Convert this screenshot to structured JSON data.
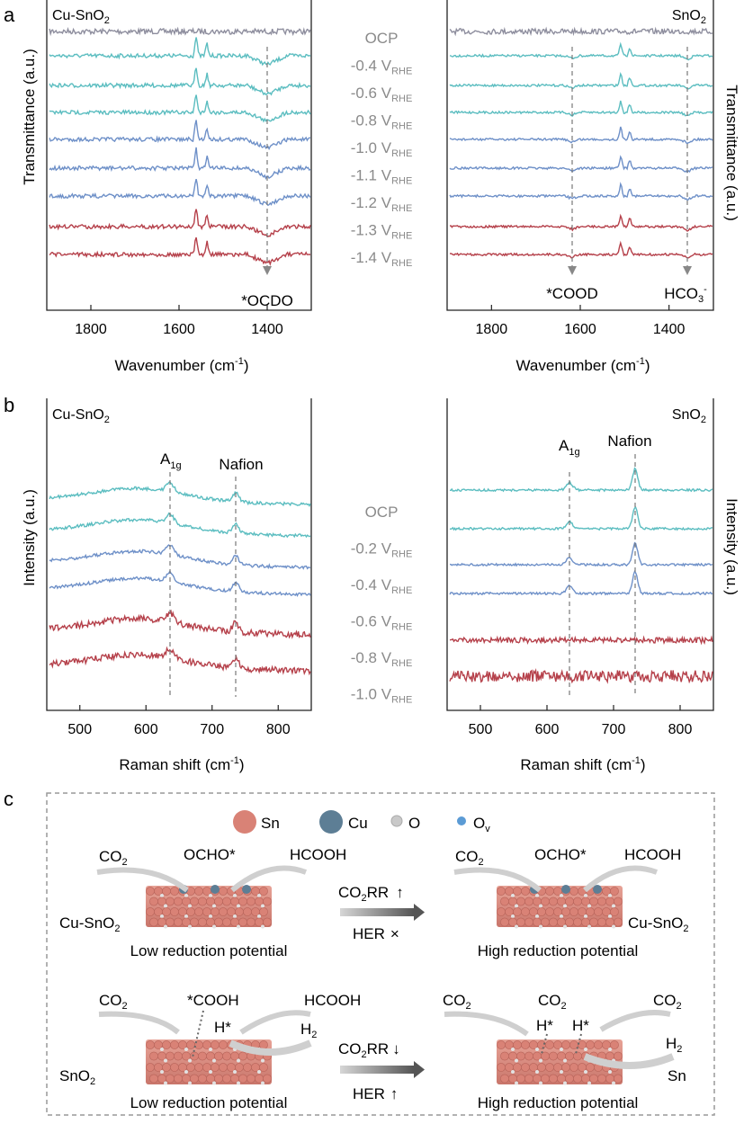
{
  "panel_labels": {
    "a": "a",
    "b": "b",
    "c": "c"
  },
  "chart_data": [
    {
      "type": "line",
      "panel": "a-left",
      "sample": "Cu-SnO",
      "sample_sub": "2",
      "xlabel": "Wavenumber (cm",
      "xlabel_sup": "-1",
      "xlabel_end": ")",
      "ylabel": "Transmittance (a.u.)",
      "xlim": [
        1900,
        1300
      ],
      "xticks": [
        "1800",
        "1600",
        "1400"
      ],
      "xtick_values": [
        1800,
        1600,
        1400
      ],
      "series": [
        {
          "name": "OCP",
          "color": "#8e8e9e"
        },
        {
          "name": "-0.4 V_RHE",
          "color": "#5bbdc0"
        },
        {
          "name": "-0.6 V_RHE",
          "color": "#5bbdc0"
        },
        {
          "name": "-0.8 V_RHE",
          "color": "#5bbdc0"
        },
        {
          "name": "-1.0 V_RHE",
          "color": "#6e90c8"
        },
        {
          "name": "-1.1 V_RHE",
          "color": "#6e90c8"
        },
        {
          "name": "-1.2 V_RHE",
          "color": "#6e90c8"
        },
        {
          "name": "-1.3 V_RHE",
          "color": "#b5404a"
        },
        {
          "name": "-1.4 V_RHE",
          "color": "#b5404a"
        }
      ],
      "annotations": [
        {
          "label": "*OCDO",
          "x": 1400
        }
      ]
    },
    {
      "type": "line",
      "panel": "a-right",
      "sample": "SnO",
      "sample_sub": "2",
      "xlabel": "Wavenumber (cm",
      "xlabel_sup": "-1",
      "xlabel_end": ")",
      "ylabel": "Transmittance (a.u.)",
      "xlim": [
        1900,
        1300
      ],
      "xticks": [
        "1800",
        "1600",
        "1400"
      ],
      "xtick_values": [
        1800,
        1600,
        1400
      ],
      "annotations": [
        {
          "label": "*COOD",
          "x": 1625
        },
        {
          "label": "HCO",
          "sub": "3",
          "sup": "-",
          "x": 1360
        }
      ]
    },
    {
      "type": "line",
      "panel": "b-left",
      "sample": "Cu-SnO",
      "sample_sub": "2",
      "xlabel": "Raman shift (cm",
      "xlabel_sup": "-1",
      "xlabel_end": ")",
      "ylabel": "Intensity (a.u.)",
      "xlim": [
        450,
        850
      ],
      "xticks": [
        "500",
        "600",
        "700",
        "800"
      ],
      "xtick_values": [
        500,
        600,
        700,
        800
      ],
      "series": [
        {
          "name": "OCP",
          "color": "#5bbdc0"
        },
        {
          "name": "-0.2 V_RHE",
          "color": "#5bbdc0"
        },
        {
          "name": "-0.4 V_RHE",
          "color": "#6e90c8"
        },
        {
          "name": "-0.6 V_RHE",
          "color": "#6e90c8"
        },
        {
          "name": "-0.8 V_RHE",
          "color": "#b5404a"
        },
        {
          "name": "-1.0 V_RHE",
          "color": "#b5404a"
        }
      ],
      "annotations": [
        {
          "label": "A",
          "sub": "1g",
          "x": 632
        },
        {
          "label": "Nafion",
          "x": 730
        }
      ]
    },
    {
      "type": "line",
      "panel": "b-right",
      "sample": "SnO",
      "sample_sub": "2",
      "xlabel": "Raman shift (cm",
      "xlabel_sup": "-1",
      "xlabel_end": ")",
      "ylabel": "Intensity (a.u.)",
      "xlim": [
        450,
        850
      ],
      "xticks": [
        "500",
        "600",
        "700",
        "800"
      ],
      "xtick_values": [
        500,
        600,
        700,
        800
      ],
      "annotations": [
        {
          "label": "A",
          "sub": "1g",
          "x": 632
        },
        {
          "label": "Nafion",
          "x": 730
        }
      ]
    }
  ],
  "ir_potentials": [
    {
      "main": "OCP",
      "sub": ""
    },
    {
      "main": "-0.4 V",
      "sub": "RHE"
    },
    {
      "main": "-0.6 V",
      "sub": "RHE"
    },
    {
      "main": "-0.8 V",
      "sub": "RHE"
    },
    {
      "main": "-1.0 V",
      "sub": "RHE"
    },
    {
      "main": "-1.1 V",
      "sub": "RHE"
    },
    {
      "main": "-1.2 V",
      "sub": "RHE"
    },
    {
      "main": "-1.3 V",
      "sub": "RHE"
    },
    {
      "main": "-1.4 V",
      "sub": "RHE"
    }
  ],
  "raman_potentials": [
    {
      "main": "OCP",
      "sub": ""
    },
    {
      "main": "-0.2 V",
      "sub": "RHE"
    },
    {
      "main": "-0.4 V",
      "sub": "RHE"
    },
    {
      "main": "-0.6 V",
      "sub": "RHE"
    },
    {
      "main": "-0.8 V",
      "sub": "RHE"
    },
    {
      "main": "-1.0 V",
      "sub": "RHE"
    }
  ],
  "scheme": {
    "legend": [
      {
        "label": "Sn",
        "color": "#d98276"
      },
      {
        "label": "Cu",
        "color": "#5d7e95"
      },
      {
        "label": "O",
        "color": "#c9c9c9"
      },
      {
        "label": "O",
        "sub": "v",
        "color": "#5b9bd5"
      }
    ],
    "co2": "CO",
    "co2_sub": "2",
    "ocho": "OCHO*",
    "hcooh": "HCOOH",
    "cooh": "*COOH",
    "hstar": "H*",
    "h2": "H",
    "h2_sub": "2",
    "sn": "Sn",
    "cu_sno2": "Cu-SnO",
    "sno2": "SnO",
    "sub2": "2",
    "co2rr": "CO",
    "co2rr_tail": "RR",
    "co2rr_up": "↑",
    "co2rr_down": "↓",
    "her": "HER",
    "her_x": "×",
    "her_up": "↑",
    "low": "Low reduction potential",
    "high": "High reduction potential"
  }
}
